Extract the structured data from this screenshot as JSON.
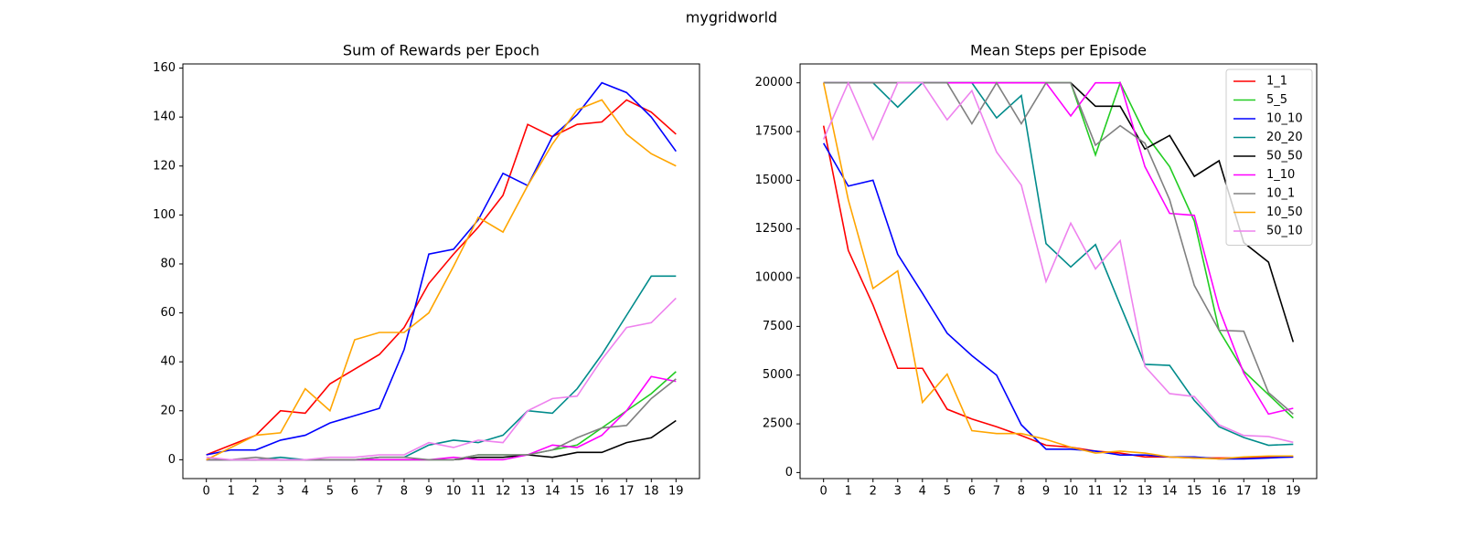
{
  "title": "mygridworld",
  "chart_data": [
    {
      "type": "line",
      "title": "Sum of Rewards per Epoch",
      "x": [
        0,
        1,
        2,
        3,
        4,
        5,
        6,
        7,
        8,
        9,
        10,
        11,
        12,
        13,
        14,
        15,
        16,
        17,
        18,
        19
      ],
      "xlim": [
        -0.95,
        19.95
      ],
      "xticks": [
        0,
        1,
        2,
        3,
        4,
        5,
        6,
        7,
        8,
        9,
        10,
        11,
        12,
        13,
        14,
        15,
        16,
        17,
        18,
        19
      ],
      "ylim": [
        -7.7,
        161.7
      ],
      "yticks": [
        0,
        20,
        40,
        60,
        80,
        100,
        120,
        140,
        160
      ],
      "series": [
        {
          "name": "1_1",
          "color": "#ff0000",
          "values": [
            2,
            6,
            10,
            20,
            19,
            31,
            37,
            43,
            54,
            72,
            84,
            95,
            108,
            137,
            132,
            137,
            138,
            147,
            142,
            133
          ]
        },
        {
          "name": "5_5",
          "color": "#22cc22",
          "values": [
            0,
            0,
            0,
            0,
            0,
            0,
            0,
            0,
            0,
            0,
            0,
            2,
            2,
            2,
            4,
            6,
            13,
            20,
            27,
            36
          ]
        },
        {
          "name": "10_10",
          "color": "#0000ff",
          "values": [
            2,
            4,
            4,
            8,
            10,
            15,
            18,
            21,
            45,
            84,
            86,
            98,
            117,
            112,
            132,
            141,
            154,
            150,
            140,
            126
          ]
        },
        {
          "name": "20_20",
          "color": "#008b8b",
          "values": [
            0,
            0,
            0,
            1,
            0,
            0,
            0,
            1,
            1,
            6,
            8,
            7,
            10,
            20,
            19,
            29,
            43,
            59,
            75,
            75
          ]
        },
        {
          "name": "50_50",
          "color": "#000000",
          "values": [
            0,
            0,
            0,
            0,
            0,
            0,
            0,
            0,
            0,
            0,
            0,
            1,
            1,
            2,
            1,
            3,
            3,
            7,
            9,
            16
          ]
        },
        {
          "name": "1_10",
          "color": "#ff00ff",
          "values": [
            0,
            0,
            0,
            0,
            0,
            0,
            0,
            0,
            0,
            0,
            1,
            0,
            0,
            2,
            6,
            5,
            10,
            20,
            34,
            32
          ]
        },
        {
          "name": "10_1",
          "color": "#808080",
          "values": [
            0,
            0,
            1,
            0,
            0,
            0,
            0,
            1,
            1,
            0,
            0,
            2,
            2,
            2,
            4,
            9,
            13,
            14,
            25,
            33
          ]
        },
        {
          "name": "10_50",
          "color": "#ffa500",
          "values": [
            0,
            5,
            10,
            11,
            29,
            20,
            49,
            52,
            52,
            60,
            79,
            99,
            93,
            112,
            129,
            143,
            147,
            133,
            125,
            120
          ]
        },
        {
          "name": "50_10",
          "color": "#ee82ee",
          "values": [
            1,
            0,
            0,
            0,
            0,
            1,
            1,
            2,
            2,
            7,
            5,
            8,
            7,
            20,
            25,
            26,
            41,
            54,
            56,
            66
          ]
        }
      ]
    },
    {
      "type": "line",
      "title": "Mean Steps per Episode",
      "legend": "upper right",
      "x": [
        0,
        1,
        2,
        3,
        4,
        5,
        6,
        7,
        8,
        9,
        10,
        11,
        12,
        13,
        14,
        15,
        16,
        17,
        18,
        19
      ],
      "xlim": [
        -0.95,
        19.95
      ],
      "xticks": [
        0,
        1,
        2,
        3,
        4,
        5,
        6,
        7,
        8,
        9,
        10,
        11,
        12,
        13,
        14,
        15,
        16,
        17,
        18,
        19
      ],
      "ylim": [
        -310,
        20970
      ],
      "yticks": [
        0,
        2500,
        5000,
        7500,
        10000,
        12500,
        15000,
        17500,
        20000
      ],
      "series": [
        {
          "name": "1_1",
          "color": "#ff0000",
          "values": [
            17800,
            11400,
            8600,
            5350,
            5350,
            3250,
            2750,
            2350,
            1900,
            1400,
            1300,
            1100,
            1000,
            800,
            800,
            750,
            750,
            750,
            800,
            800
          ]
        },
        {
          "name": "5_5",
          "color": "#22cc22",
          "values": [
            20000,
            20000,
            20000,
            20000,
            20000,
            20000,
            20000,
            20000,
            20000,
            20000,
            20000,
            16300,
            20000,
            17400,
            15700,
            12900,
            7300,
            5200,
            4000,
            2800
          ]
        },
        {
          "name": "10_10",
          "color": "#0000ff",
          "values": [
            16900,
            14700,
            15000,
            11200,
            9200,
            7150,
            6000,
            5000,
            2450,
            1200,
            1200,
            1100,
            900,
            900,
            800,
            800,
            700,
            700,
            750,
            800
          ]
        },
        {
          "name": "20_20",
          "color": "#008b8b",
          "values": [
            20000,
            20000,
            20000,
            18750,
            20000,
            20000,
            20000,
            18200,
            19350,
            11750,
            10550,
            11700,
            8600,
            5550,
            5500,
            3700,
            2350,
            1800,
            1400,
            1450
          ]
        },
        {
          "name": "50_50",
          "color": "#000000",
          "values": [
            20000,
            20000,
            20000,
            20000,
            20000,
            20000,
            20000,
            20000,
            20000,
            20000,
            20000,
            18800,
            18800,
            16600,
            17300,
            15200,
            16000,
            11800,
            10800,
            6700
          ]
        },
        {
          "name": "1_10",
          "color": "#ff00ff",
          "values": [
            20000,
            20000,
            20000,
            20000,
            20000,
            20000,
            20000,
            20000,
            20000,
            20000,
            18300,
            20000,
            20000,
            15700,
            13300,
            13200,
            8400,
            5100,
            3000,
            3300
          ]
        },
        {
          "name": "10_1",
          "color": "#808080",
          "values": [
            20000,
            20000,
            20000,
            20000,
            20000,
            20000,
            17900,
            20000,
            17900,
            20000,
            20000,
            16800,
            17800,
            16900,
            14000,
            9600,
            7300,
            7250,
            4100,
            3000
          ]
        },
        {
          "name": "10_50",
          "color": "#ffa500",
          "values": [
            20000,
            14000,
            9450,
            10350,
            3600,
            5050,
            2150,
            2000,
            2000,
            1700,
            1300,
            1000,
            1100,
            1000,
            800,
            750,
            700,
            800,
            850,
            850
          ]
        },
        {
          "name": "50_10",
          "color": "#ee82ee",
          "values": [
            17100,
            20000,
            17100,
            20000,
            20000,
            18100,
            19600,
            16450,
            14750,
            9800,
            12800,
            10450,
            11900,
            5450,
            4050,
            3900,
            2450,
            1900,
            1850,
            1550
          ]
        }
      ]
    }
  ]
}
